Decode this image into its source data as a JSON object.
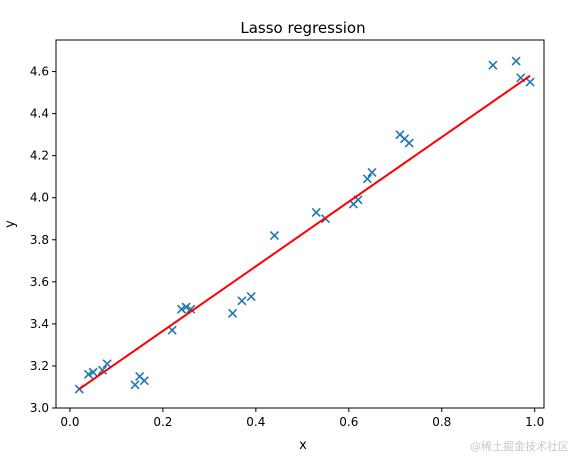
{
  "chart_data": {
    "type": "scatter",
    "title": "Lasso regression",
    "xlabel": "x",
    "ylabel": "y",
    "xlim": [
      -0.03,
      1.02
    ],
    "ylim": [
      3.0,
      4.75
    ],
    "x_ticks": [
      0.0,
      0.2,
      0.4,
      0.6,
      0.8,
      1.0
    ],
    "x_tick_labels": [
      "0.0",
      "0.2",
      "0.4",
      "0.6",
      "0.8",
      "1.0"
    ],
    "y_ticks": [
      3.0,
      3.2,
      3.4,
      3.6,
      3.8,
      4.0,
      4.2,
      4.4,
      4.6
    ],
    "y_tick_labels": [
      "3.0",
      "3.2",
      "3.4",
      "3.6",
      "3.8",
      "4.0",
      "4.2",
      "4.4",
      "4.6"
    ],
    "grid": false,
    "series": [
      {
        "type": "scatter",
        "marker": "x",
        "color": "#1f77b4",
        "points": [
          [
            0.02,
            3.09
          ],
          [
            0.04,
            3.16
          ],
          [
            0.05,
            3.17
          ],
          [
            0.07,
            3.18
          ],
          [
            0.08,
            3.21
          ],
          [
            0.14,
            3.11
          ],
          [
            0.15,
            3.15
          ],
          [
            0.16,
            3.13
          ],
          [
            0.22,
            3.37
          ],
          [
            0.24,
            3.47
          ],
          [
            0.25,
            3.48
          ],
          [
            0.26,
            3.47
          ],
          [
            0.35,
            3.45
          ],
          [
            0.37,
            3.51
          ],
          [
            0.39,
            3.53
          ],
          [
            0.44,
            3.82
          ],
          [
            0.53,
            3.93
          ],
          [
            0.55,
            3.9
          ],
          [
            0.61,
            3.97
          ],
          [
            0.62,
            3.99
          ],
          [
            0.64,
            4.09
          ],
          [
            0.65,
            4.12
          ],
          [
            0.71,
            4.3
          ],
          [
            0.72,
            4.28
          ],
          [
            0.73,
            4.26
          ],
          [
            0.91,
            4.63
          ],
          [
            0.96,
            4.65
          ],
          [
            0.97,
            4.57
          ],
          [
            0.99,
            4.55
          ]
        ]
      },
      {
        "type": "line",
        "color": "#ff0000",
        "points": [
          [
            0.02,
            3.09
          ],
          [
            0.99,
            4.58
          ]
        ]
      }
    ]
  },
  "watermark": "@稀土掘金技术社区"
}
